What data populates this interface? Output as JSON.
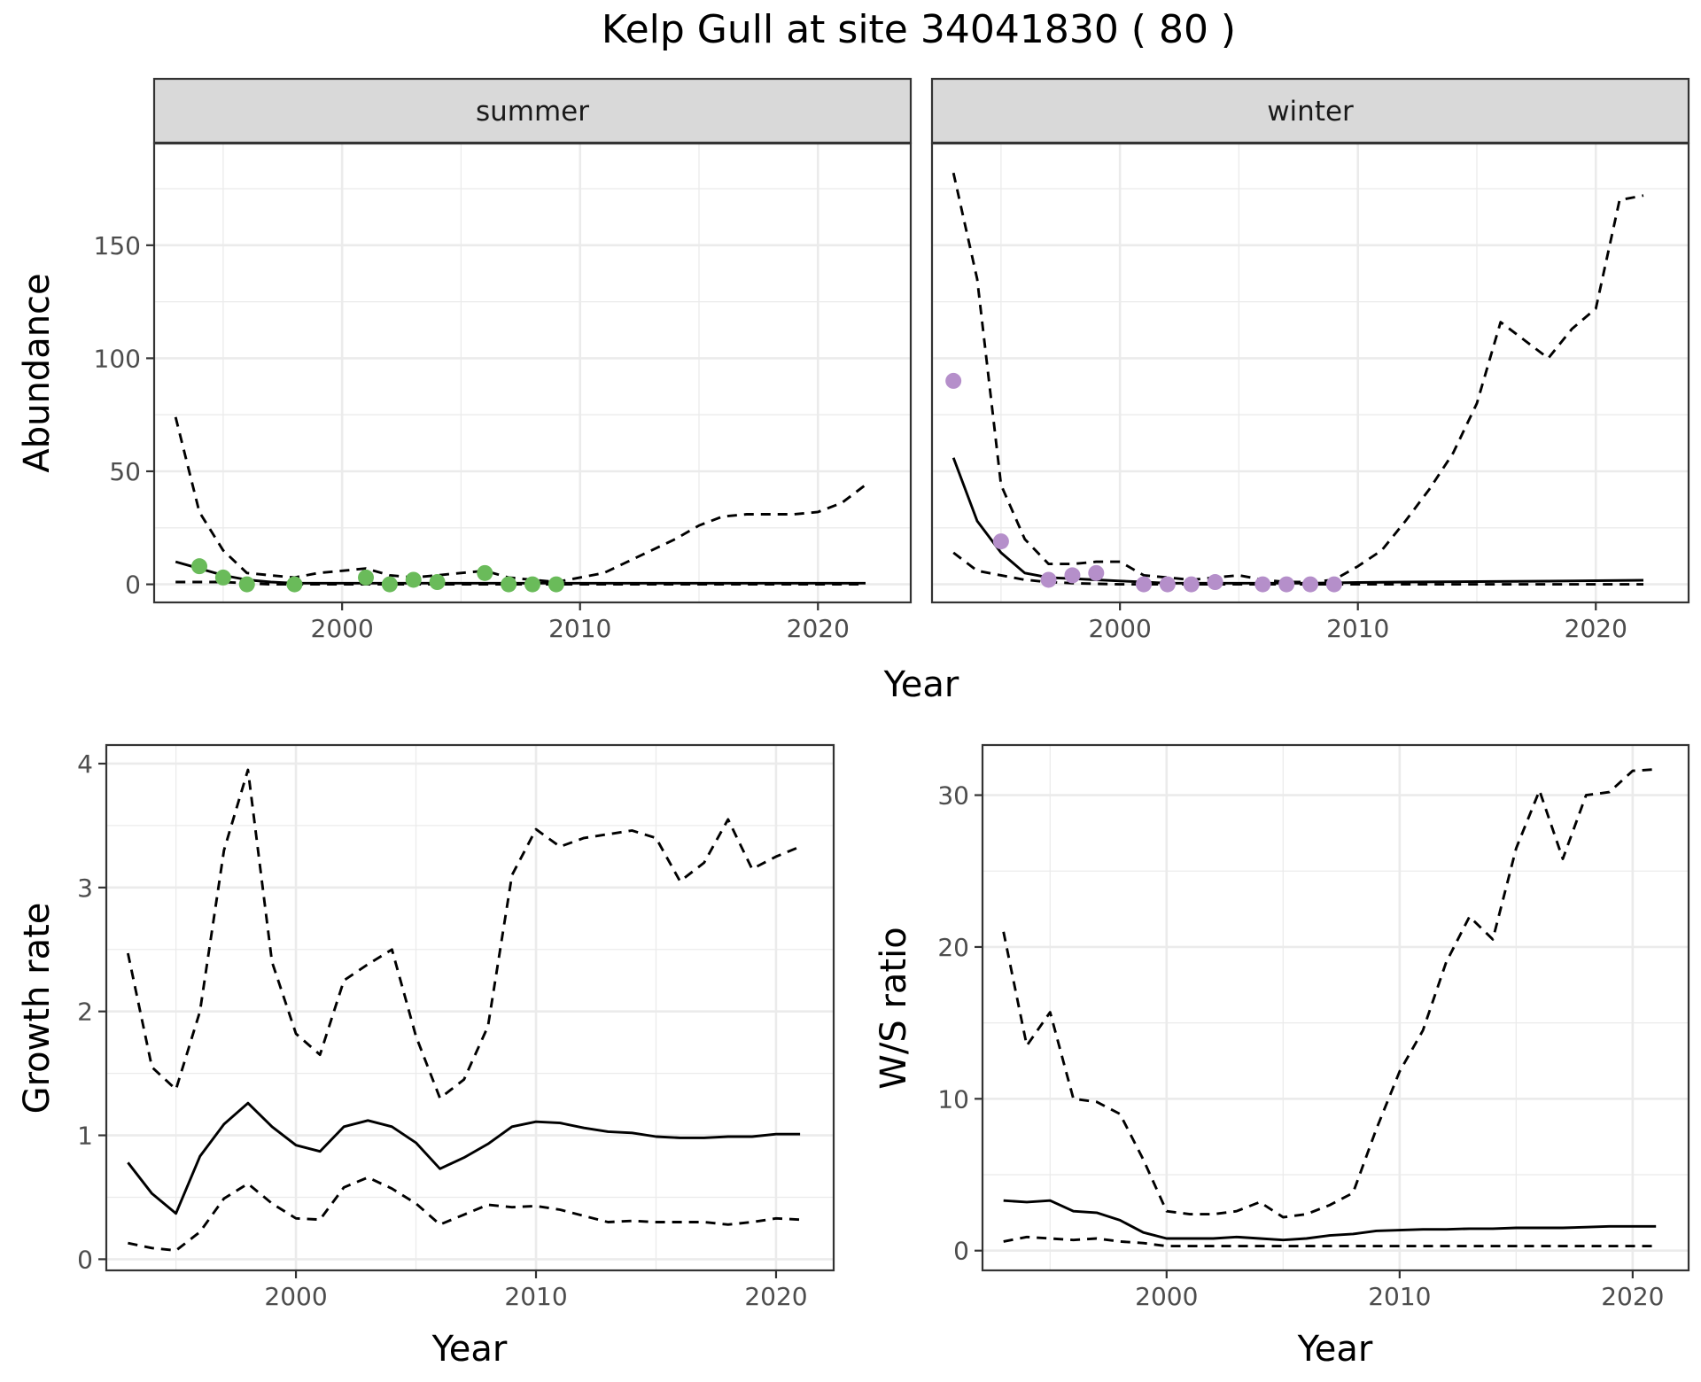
{
  "title": "Kelp Gull at site 34041830 ( 80 )",
  "colors": {
    "summer_points": "#6abb5a",
    "winter_points": "#b58fca",
    "line": "#000000",
    "strip_bg": "#d9d9d9",
    "grid": "#ebebeb"
  },
  "chart_data": [
    {
      "type": "line",
      "panel": "summer",
      "strip_label": "summer",
      "xlabel": "Year",
      "ylabel": "Abundance",
      "xlim": [
        1992.1,
        2023.9
      ],
      "ylim": [
        -8,
        195
      ],
      "xticks": [
        2000,
        2010,
        2020
      ],
      "yticks": [
        0,
        50,
        100,
        150
      ],
      "yticks_shown": true,
      "grid": true,
      "points": {
        "name": "observed",
        "x": [
          1994,
          1995,
          1996,
          1998,
          2001,
          2002,
          2003,
          2004,
          2006,
          2007,
          2008,
          2009
        ],
        "y": [
          8,
          3,
          0,
          0,
          3,
          0,
          2,
          1,
          5,
          0,
          0,
          0
        ]
      },
      "series": [
        {
          "name": "estimate",
          "style": "solid",
          "x": [
            1993,
            1994,
            1995,
            1996,
            1997,
            1998,
            2000,
            2002,
            2004,
            2006,
            2008,
            2010,
            2014,
            2018,
            2022
          ],
          "y": [
            10,
            7,
            4,
            2,
            1,
            0.5,
            0.5,
            0.5,
            0.5,
            0.5,
            0.5,
            0.5,
            0.5,
            0.5,
            0.5
          ]
        },
        {
          "name": "upper",
          "style": "dashed",
          "x": [
            1993,
            1994,
            1995,
            1996,
            1997,
            1998,
            1999,
            2000,
            2001,
            2002,
            2003,
            2004,
            2005,
            2006,
            2007,
            2008,
            2009,
            2010,
            2011,
            2012,
            2013,
            2014,
            2015,
            2016,
            2017,
            2018,
            2019,
            2020,
            2021,
            2022
          ],
          "y": [
            74,
            32,
            15,
            5,
            4,
            3,
            5,
            6,
            7,
            4,
            3,
            4,
            5,
            6,
            3,
            2,
            1,
            3,
            5,
            10,
            15,
            20,
            26,
            30,
            31,
            31,
            31,
            32,
            36,
            44
          ]
        },
        {
          "name": "lower",
          "style": "dashed",
          "x": [
            1993,
            1995,
            1997,
            2000,
            2005,
            2010,
            2015,
            2022
          ],
          "y": [
            1,
            1,
            0,
            0,
            0,
            0,
            0,
            0
          ]
        }
      ]
    },
    {
      "type": "line",
      "panel": "winter",
      "strip_label": "winter",
      "xlabel": "Year",
      "ylabel": "Abundance",
      "xlim": [
        1992.1,
        2023.9
      ],
      "ylim": [
        -8,
        195
      ],
      "xticks": [
        2000,
        2010,
        2020
      ],
      "yticks": [
        0,
        50,
        100,
        150
      ],
      "yticks_shown": false,
      "grid": true,
      "points": {
        "name": "observed",
        "x": [
          1993,
          1995,
          1997,
          1998,
          1999,
          2001,
          2002,
          2003,
          2004,
          2006,
          2007,
          2008,
          2009
        ],
        "y": [
          90,
          19,
          2,
          4,
          5,
          0,
          0,
          0,
          1,
          0,
          0,
          0,
          0
        ]
      },
      "series": [
        {
          "name": "estimate",
          "style": "solid",
          "x": [
            1993,
            1994,
            1995,
            1996,
            1997,
            1998,
            1999,
            2000,
            2001,
            2002,
            2004,
            2006,
            2008,
            2010,
            2012,
            2015,
            2018,
            2020,
            2022
          ],
          "y": [
            56,
            28,
            14,
            5,
            3,
            2.5,
            2,
            1.5,
            1,
            0.5,
            0.5,
            0.5,
            0.5,
            0.8,
            1,
            1.2,
            1.4,
            1.6,
            1.8
          ]
        },
        {
          "name": "upper",
          "style": "dashed",
          "x": [
            1993,
            1994,
            1995,
            1996,
            1997,
            1998,
            1999,
            2000,
            2001,
            2002,
            2003,
            2004,
            2005,
            2006,
            2007,
            2008,
            2009,
            2010,
            2011,
            2012,
            2013,
            2014,
            2015,
            2016,
            2017,
            2018,
            2019,
            2020,
            2021,
            2022
          ],
          "y": [
            182,
            135,
            44,
            20,
            9,
            9,
            10,
            10,
            4,
            3,
            2,
            3,
            4,
            2,
            1,
            1,
            2,
            8,
            15,
            28,
            42,
            58,
            80,
            116,
            108,
            100,
            113,
            122,
            170,
            172
          ]
        },
        {
          "name": "lower",
          "style": "dashed",
          "x": [
            1993,
            1994,
            1995,
            1996,
            1997,
            1998,
            2000,
            2005,
            2010,
            2015,
            2022
          ],
          "y": [
            14,
            6,
            4,
            2,
            1,
            0.5,
            0,
            0,
            0,
            0,
            0
          ]
        }
      ]
    },
    {
      "type": "line",
      "panel": "growth",
      "xlabel": "Year",
      "ylabel": "Growth rate",
      "xlim": [
        1992.1,
        2022.4
      ],
      "ylim": [
        -0.09,
        4.15
      ],
      "xticks": [
        2000,
        2010,
        2020
      ],
      "yticks": [
        0,
        1,
        2,
        3,
        4
      ],
      "grid": true,
      "series": [
        {
          "name": "estimate",
          "style": "solid",
          "x": [
            1993,
            1994,
            1995,
            1996,
            1997,
            1998,
            1999,
            2000,
            2001,
            2002,
            2003,
            2004,
            2005,
            2006,
            2007,
            2008,
            2009,
            2010,
            2011,
            2012,
            2013,
            2014,
            2015,
            2016,
            2017,
            2018,
            2019,
            2020,
            2021
          ],
          "y": [
            0.78,
            0.53,
            0.37,
            0.83,
            1.09,
            1.26,
            1.07,
            0.92,
            0.87,
            1.07,
            1.12,
            1.07,
            0.94,
            0.73,
            0.82,
            0.93,
            1.07,
            1.11,
            1.1,
            1.06,
            1.03,
            1.02,
            0.99,
            0.98,
            0.98,
            0.99,
            0.99,
            1.01,
            1.01
          ]
        },
        {
          "name": "upper",
          "style": "dashed",
          "x": [
            1993,
            1994,
            1995,
            1996,
            1997,
            1998,
            1999,
            2000,
            2001,
            2002,
            2003,
            2004,
            2005,
            2006,
            2007,
            2008,
            2009,
            2010,
            2011,
            2012,
            2013,
            2014,
            2015,
            2016,
            2017,
            2018,
            2019,
            2020,
            2021
          ],
          "y": [
            2.47,
            1.55,
            1.37,
            2.0,
            3.3,
            3.95,
            2.4,
            1.82,
            1.65,
            2.25,
            2.38,
            2.5,
            1.8,
            1.3,
            1.45,
            1.88,
            3.1,
            3.47,
            3.33,
            3.4,
            3.43,
            3.46,
            3.4,
            3.05,
            3.2,
            3.55,
            3.15,
            3.25,
            3.33
          ]
        },
        {
          "name": "lower",
          "style": "dashed",
          "x": [
            1993,
            1994,
            1995,
            1996,
            1997,
            1998,
            1999,
            2000,
            2001,
            2002,
            2003,
            2004,
            2005,
            2006,
            2007,
            2008,
            2009,
            2010,
            2011,
            2012,
            2013,
            2014,
            2015,
            2016,
            2017,
            2018,
            2019,
            2020,
            2021
          ],
          "y": [
            0.13,
            0.09,
            0.07,
            0.22,
            0.49,
            0.61,
            0.45,
            0.33,
            0.32,
            0.58,
            0.66,
            0.57,
            0.45,
            0.28,
            0.36,
            0.44,
            0.42,
            0.43,
            0.4,
            0.35,
            0.3,
            0.31,
            0.3,
            0.3,
            0.3,
            0.28,
            0.3,
            0.33,
            0.32
          ]
        }
      ]
    },
    {
      "type": "line",
      "panel": "ratio",
      "xlabel": "Year",
      "ylabel": "W/S ratio",
      "xlim": [
        1992.1,
        2022.4
      ],
      "ylim": [
        -1.3,
        33.3
      ],
      "xticks": [
        2000,
        2010,
        2020
      ],
      "yticks": [
        0,
        10,
        20,
        30
      ],
      "grid": true,
      "series": [
        {
          "name": "estimate",
          "style": "solid",
          "x": [
            1993,
            1994,
            1995,
            1996,
            1997,
            1998,
            1999,
            2000,
            2001,
            2002,
            2003,
            2004,
            2005,
            2006,
            2007,
            2008,
            2009,
            2010,
            2011,
            2012,
            2013,
            2014,
            2015,
            2016,
            2017,
            2018,
            2019,
            2020,
            2021
          ],
          "y": [
            3.3,
            3.2,
            3.3,
            2.6,
            2.5,
            2.0,
            1.2,
            0.8,
            0.8,
            0.8,
            0.9,
            0.8,
            0.7,
            0.8,
            1.0,
            1.1,
            1.3,
            1.35,
            1.4,
            1.4,
            1.45,
            1.45,
            1.5,
            1.5,
            1.5,
            1.55,
            1.6,
            1.6,
            1.6
          ]
        },
        {
          "name": "upper",
          "style": "dashed",
          "x": [
            1993,
            1994,
            1995,
            1996,
            1997,
            1998,
            1999,
            2000,
            2001,
            2002,
            2003,
            2004,
            2005,
            2006,
            2007,
            2008,
            2009,
            2010,
            2011,
            2012,
            2013,
            2014,
            2015,
            2016,
            2017,
            2018,
            2019,
            2020,
            2021
          ],
          "y": [
            21,
            13.5,
            15.7,
            10,
            9.8,
            9,
            6,
            2.6,
            2.4,
            2.4,
            2.6,
            3.2,
            2.2,
            2.4,
            3.0,
            3.8,
            8.0,
            11.8,
            14.5,
            19.0,
            22.0,
            20.5,
            26.5,
            30.3,
            25.8,
            30.0,
            30.2,
            31.6,
            31.7
          ]
        },
        {
          "name": "lower",
          "style": "dashed",
          "x": [
            1993,
            1994,
            1995,
            1996,
            1997,
            1998,
            1999,
            2000,
            2005,
            2010,
            2015,
            2021
          ],
          "y": [
            0.6,
            0.9,
            0.8,
            0.7,
            0.8,
            0.6,
            0.5,
            0.3,
            0.3,
            0.3,
            0.3,
            0.3
          ]
        }
      ]
    }
  ]
}
